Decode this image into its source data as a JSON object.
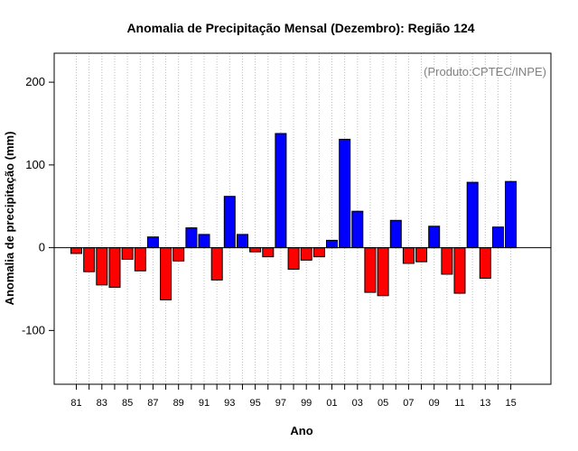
{
  "chart_data": {
    "type": "bar",
    "title": "Anomalia de Precipitação Mensal (Dezembro): Região 124",
    "xlabel": "Ano",
    "ylabel": "Anomalia de precipitação (mm)",
    "annotation": "(Produto:CPTEC/INPE)",
    "ylim": [
      -165,
      235
    ],
    "yticks": [
      -100,
      0,
      100,
      200
    ],
    "categories": [
      "81",
      "82",
      "83",
      "84",
      "85",
      "86",
      "87",
      "88",
      "89",
      "90",
      "91",
      "92",
      "93",
      "94",
      "95",
      "96",
      "97",
      "98",
      "99",
      "00",
      "01",
      "02",
      "03",
      "04",
      "05",
      "06",
      "07",
      "08",
      "09",
      "10",
      "11",
      "12",
      "13",
      "14",
      "15"
    ],
    "tick_labels": [
      "81",
      "83",
      "85",
      "87",
      "89",
      "91",
      "93",
      "95",
      "97",
      "99",
      "01",
      "03",
      "05",
      "07",
      "09",
      "11",
      "13",
      "15"
    ],
    "values": [
      -7,
      -29,
      -45,
      -48,
      -14,
      -28,
      13,
      -63,
      -16,
      24,
      16,
      -39,
      62,
      16,
      -5,
      -11,
      138,
      -26,
      -15,
      -11,
      9,
      131,
      44,
      -54,
      -58,
      33,
      -19,
      -17,
      26,
      -32,
      -55,
      79,
      -37,
      25,
      80
    ],
    "positive_color": "#0000ff",
    "negative_color": "#ff0000",
    "grid": "vertical dotted",
    "baseline": 0
  }
}
